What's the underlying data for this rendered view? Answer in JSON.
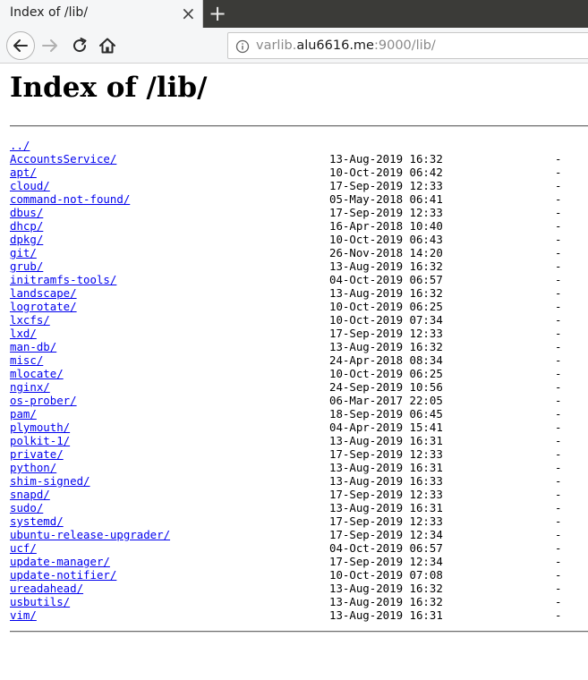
{
  "browser": {
    "tab_title": "Index of /lib/",
    "tab_close": "×",
    "new_tab": "+",
    "url_prefix": "varlib.",
    "url_host": "alu6616.me",
    "url_suffix": ":9000/lib/"
  },
  "page": {
    "heading": "Index of /lib/",
    "parent_link": "../",
    "entries": [
      {
        "name": "AccountsService/",
        "date": "13-Aug-2019 16:32",
        "size": "-"
      },
      {
        "name": "apt/",
        "date": "10-Oct-2019 06:42",
        "size": "-"
      },
      {
        "name": "cloud/",
        "date": "17-Sep-2019 12:33",
        "size": "-"
      },
      {
        "name": "command-not-found/",
        "date": "05-May-2018 06:41",
        "size": "-"
      },
      {
        "name": "dbus/",
        "date": "17-Sep-2019 12:33",
        "size": "-"
      },
      {
        "name": "dhcp/",
        "date": "16-Apr-2018 10:40",
        "size": "-"
      },
      {
        "name": "dpkg/",
        "date": "10-Oct-2019 06:43",
        "size": "-"
      },
      {
        "name": "git/",
        "date": "26-Nov-2018 14:20",
        "size": "-"
      },
      {
        "name": "grub/",
        "date": "13-Aug-2019 16:32",
        "size": "-"
      },
      {
        "name": "initramfs-tools/",
        "date": "04-Oct-2019 06:57",
        "size": "-"
      },
      {
        "name": "landscape/",
        "date": "13-Aug-2019 16:32",
        "size": "-"
      },
      {
        "name": "logrotate/",
        "date": "10-Oct-2019 06:25",
        "size": "-"
      },
      {
        "name": "lxcfs/",
        "date": "10-Oct-2019 07:34",
        "size": "-"
      },
      {
        "name": "lxd/",
        "date": "17-Sep-2019 12:33",
        "size": "-"
      },
      {
        "name": "man-db/",
        "date": "13-Aug-2019 16:32",
        "size": "-"
      },
      {
        "name": "misc/",
        "date": "24-Apr-2018 08:34",
        "size": "-"
      },
      {
        "name": "mlocate/",
        "date": "10-Oct-2019 06:25",
        "size": "-"
      },
      {
        "name": "nginx/",
        "date": "24-Sep-2019 10:56",
        "size": "-"
      },
      {
        "name": "os-prober/",
        "date": "06-Mar-2017 22:05",
        "size": "-"
      },
      {
        "name": "pam/",
        "date": "18-Sep-2019 06:45",
        "size": "-"
      },
      {
        "name": "plymouth/",
        "date": "04-Apr-2019 15:41",
        "size": "-"
      },
      {
        "name": "polkit-1/",
        "date": "13-Aug-2019 16:31",
        "size": "-"
      },
      {
        "name": "private/",
        "date": "17-Sep-2019 12:33",
        "size": "-"
      },
      {
        "name": "python/",
        "date": "13-Aug-2019 16:31",
        "size": "-"
      },
      {
        "name": "shim-signed/",
        "date": "13-Aug-2019 16:33",
        "size": "-"
      },
      {
        "name": "snapd/",
        "date": "17-Sep-2019 12:33",
        "size": "-"
      },
      {
        "name": "sudo/",
        "date": "13-Aug-2019 16:31",
        "size": "-"
      },
      {
        "name": "systemd/",
        "date": "17-Sep-2019 12:33",
        "size": "-"
      },
      {
        "name": "ubuntu-release-upgrader/",
        "date": "17-Sep-2019 12:34",
        "size": "-"
      },
      {
        "name": "ucf/",
        "date": "04-Oct-2019 06:57",
        "size": "-"
      },
      {
        "name": "update-manager/",
        "date": "17-Sep-2019 12:34",
        "size": "-"
      },
      {
        "name": "update-notifier/",
        "date": "10-Oct-2019 07:08",
        "size": "-"
      },
      {
        "name": "ureadahead/",
        "date": "13-Aug-2019 16:32",
        "size": "-"
      },
      {
        "name": "usbutils/",
        "date": "13-Aug-2019 16:32",
        "size": "-"
      },
      {
        "name": "vim/",
        "date": "13-Aug-2019 16:31",
        "size": "-"
      }
    ]
  },
  "icons": {
    "back": "back-arrow-icon",
    "forward": "forward-arrow-icon",
    "reload": "reload-icon",
    "home": "home-icon",
    "site_info": "info-icon"
  },
  "colors": {
    "link": "#0000ee",
    "tabstrip": "#3b3b38",
    "toolbar": "#f5f6f7"
  }
}
